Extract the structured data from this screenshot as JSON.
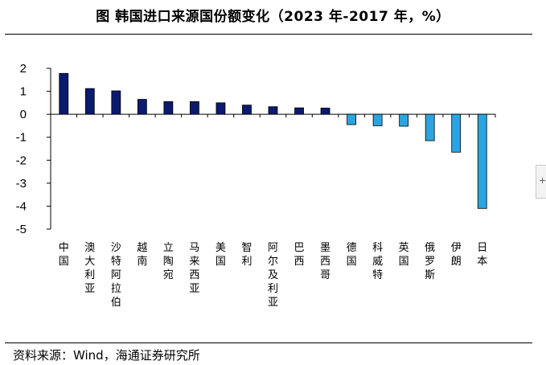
{
  "header": {
    "title": "图  韩国进口来源国份额变化（2023 年-2017 年，%）"
  },
  "footer": {
    "source": "资料来源：Wind，海通证券研究所"
  },
  "chart_data": {
    "type": "bar",
    "title": "图  韩国进口来源国份额变化（2023 年-2017 年，%）",
    "xlabel": "",
    "ylabel": "",
    "ylim": [
      -5,
      2
    ],
    "yticks": [
      2,
      1,
      0,
      -1,
      -2,
      -3,
      -4,
      -5
    ],
    "grid": false,
    "categories": [
      "中国",
      "澳大利亚",
      "沙特阿拉伯",
      "越南",
      "立陶宛",
      "马来西亚",
      "美国",
      "智利",
      "阿尔及利亚",
      "巴西",
      "墨西哥",
      "德国",
      "科威特",
      "英国",
      "俄罗斯",
      "伊朗",
      "日本"
    ],
    "values": [
      1.78,
      1.12,
      1.02,
      0.65,
      0.55,
      0.55,
      0.5,
      0.4,
      0.33,
      0.28,
      0.27,
      -0.45,
      -0.5,
      -0.52,
      -1.15,
      -1.65,
      -4.1
    ],
    "colors": {
      "positive": "#0b1a6e",
      "negative": "#2aa5e0"
    }
  }
}
